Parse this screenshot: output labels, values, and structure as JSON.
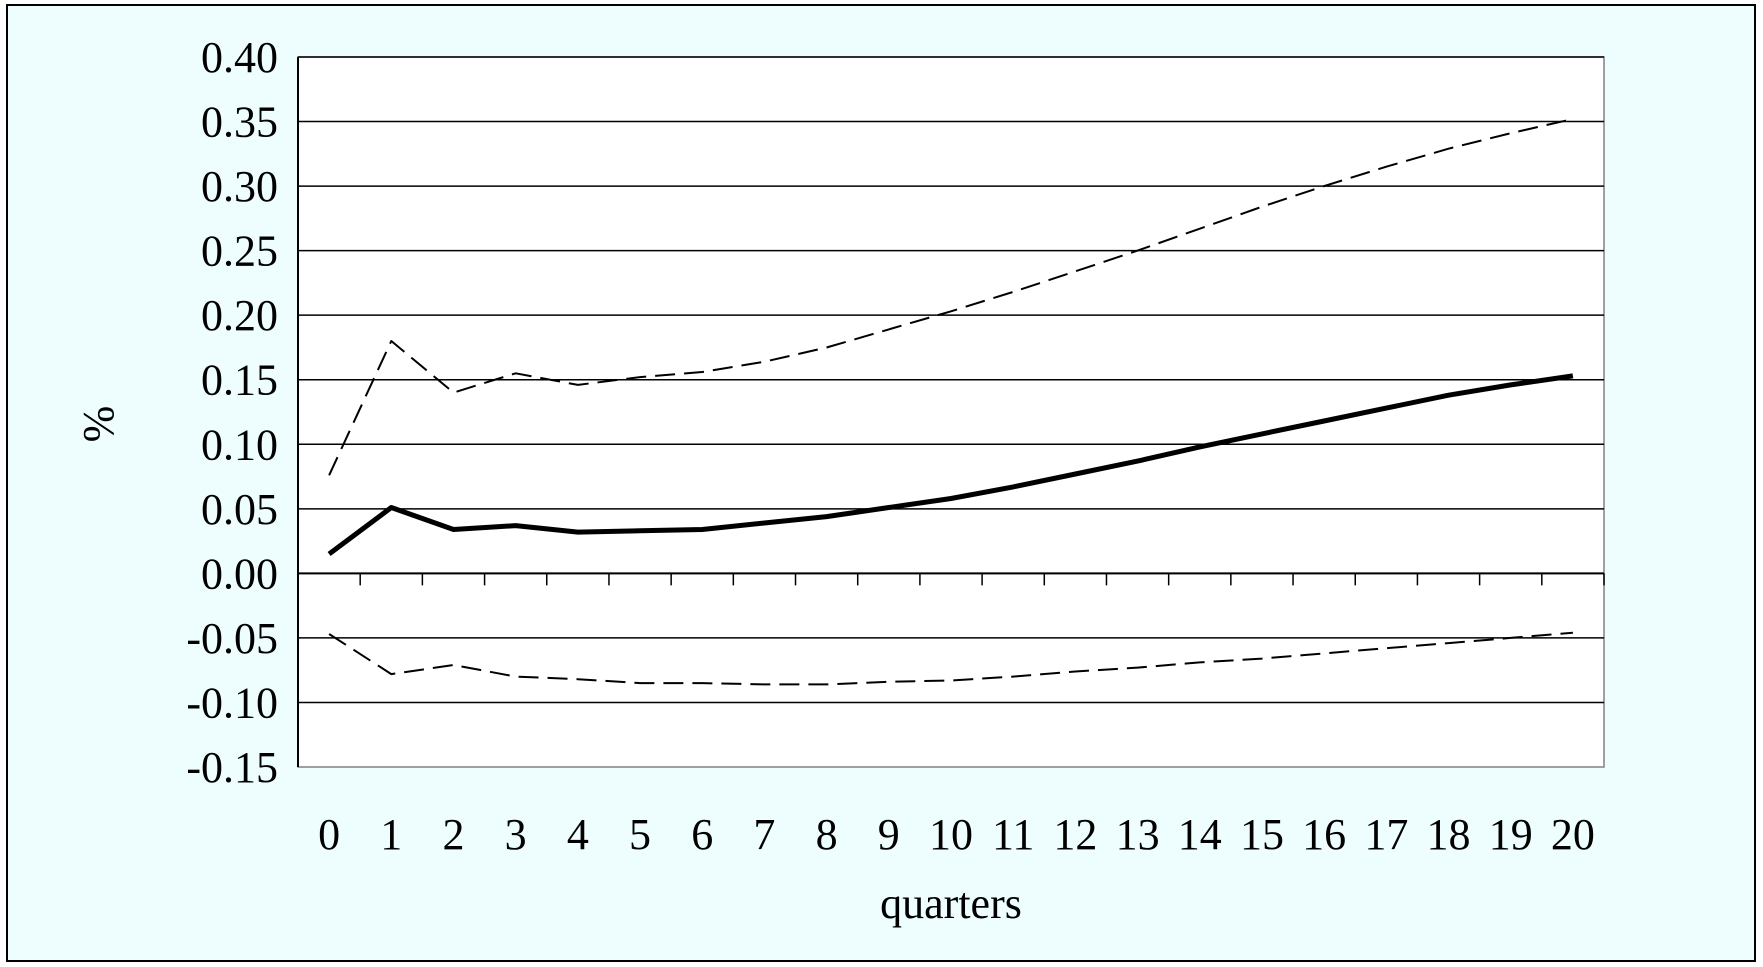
{
  "colors": {
    "background": "#eefefe",
    "plot_background": "#ffffff",
    "line": "#000000"
  },
  "chart_data": {
    "type": "line",
    "title": "",
    "xlabel": "quarters",
    "ylabel": "%",
    "x": [
      0,
      1,
      2,
      3,
      4,
      5,
      6,
      7,
      8,
      9,
      10,
      11,
      12,
      13,
      14,
      15,
      16,
      17,
      18,
      19,
      20
    ],
    "ylim": [
      -0.15,
      0.4
    ],
    "yticks": [
      "0.40",
      "0.35",
      "0.30",
      "0.25",
      "0.20",
      "0.15",
      "0.10",
      "0.05",
      "0.00",
      "-0.05",
      "-0.10",
      "-0.15"
    ],
    "grid": true,
    "legend": "none",
    "series": [
      {
        "style": "solid-thick",
        "values": [
          0.015,
          0.051,
          0.034,
          0.037,
          0.032,
          0.033,
          0.034,
          0.039,
          0.044,
          0.051,
          0.058,
          0.067,
          0.077,
          0.087,
          0.098,
          0.108,
          0.118,
          0.128,
          0.138,
          0.146,
          0.153
        ]
      },
      {
        "style": "dashed",
        "values": [
          0.076,
          0.18,
          0.14,
          0.155,
          0.146,
          0.152,
          0.156,
          0.164,
          0.175,
          0.189,
          0.203,
          0.218,
          0.234,
          0.25,
          0.267,
          0.284,
          0.3,
          0.315,
          0.329,
          0.341,
          0.352
        ]
      },
      {
        "style": "dashed",
        "values": [
          -0.047,
          -0.078,
          -0.071,
          -0.08,
          -0.082,
          -0.085,
          -0.085,
          -0.086,
          -0.086,
          -0.084,
          -0.083,
          -0.08,
          -0.076,
          -0.073,
          -0.069,
          -0.066,
          -0.062,
          -0.058,
          -0.054,
          -0.05,
          -0.046
        ]
      }
    ]
  }
}
